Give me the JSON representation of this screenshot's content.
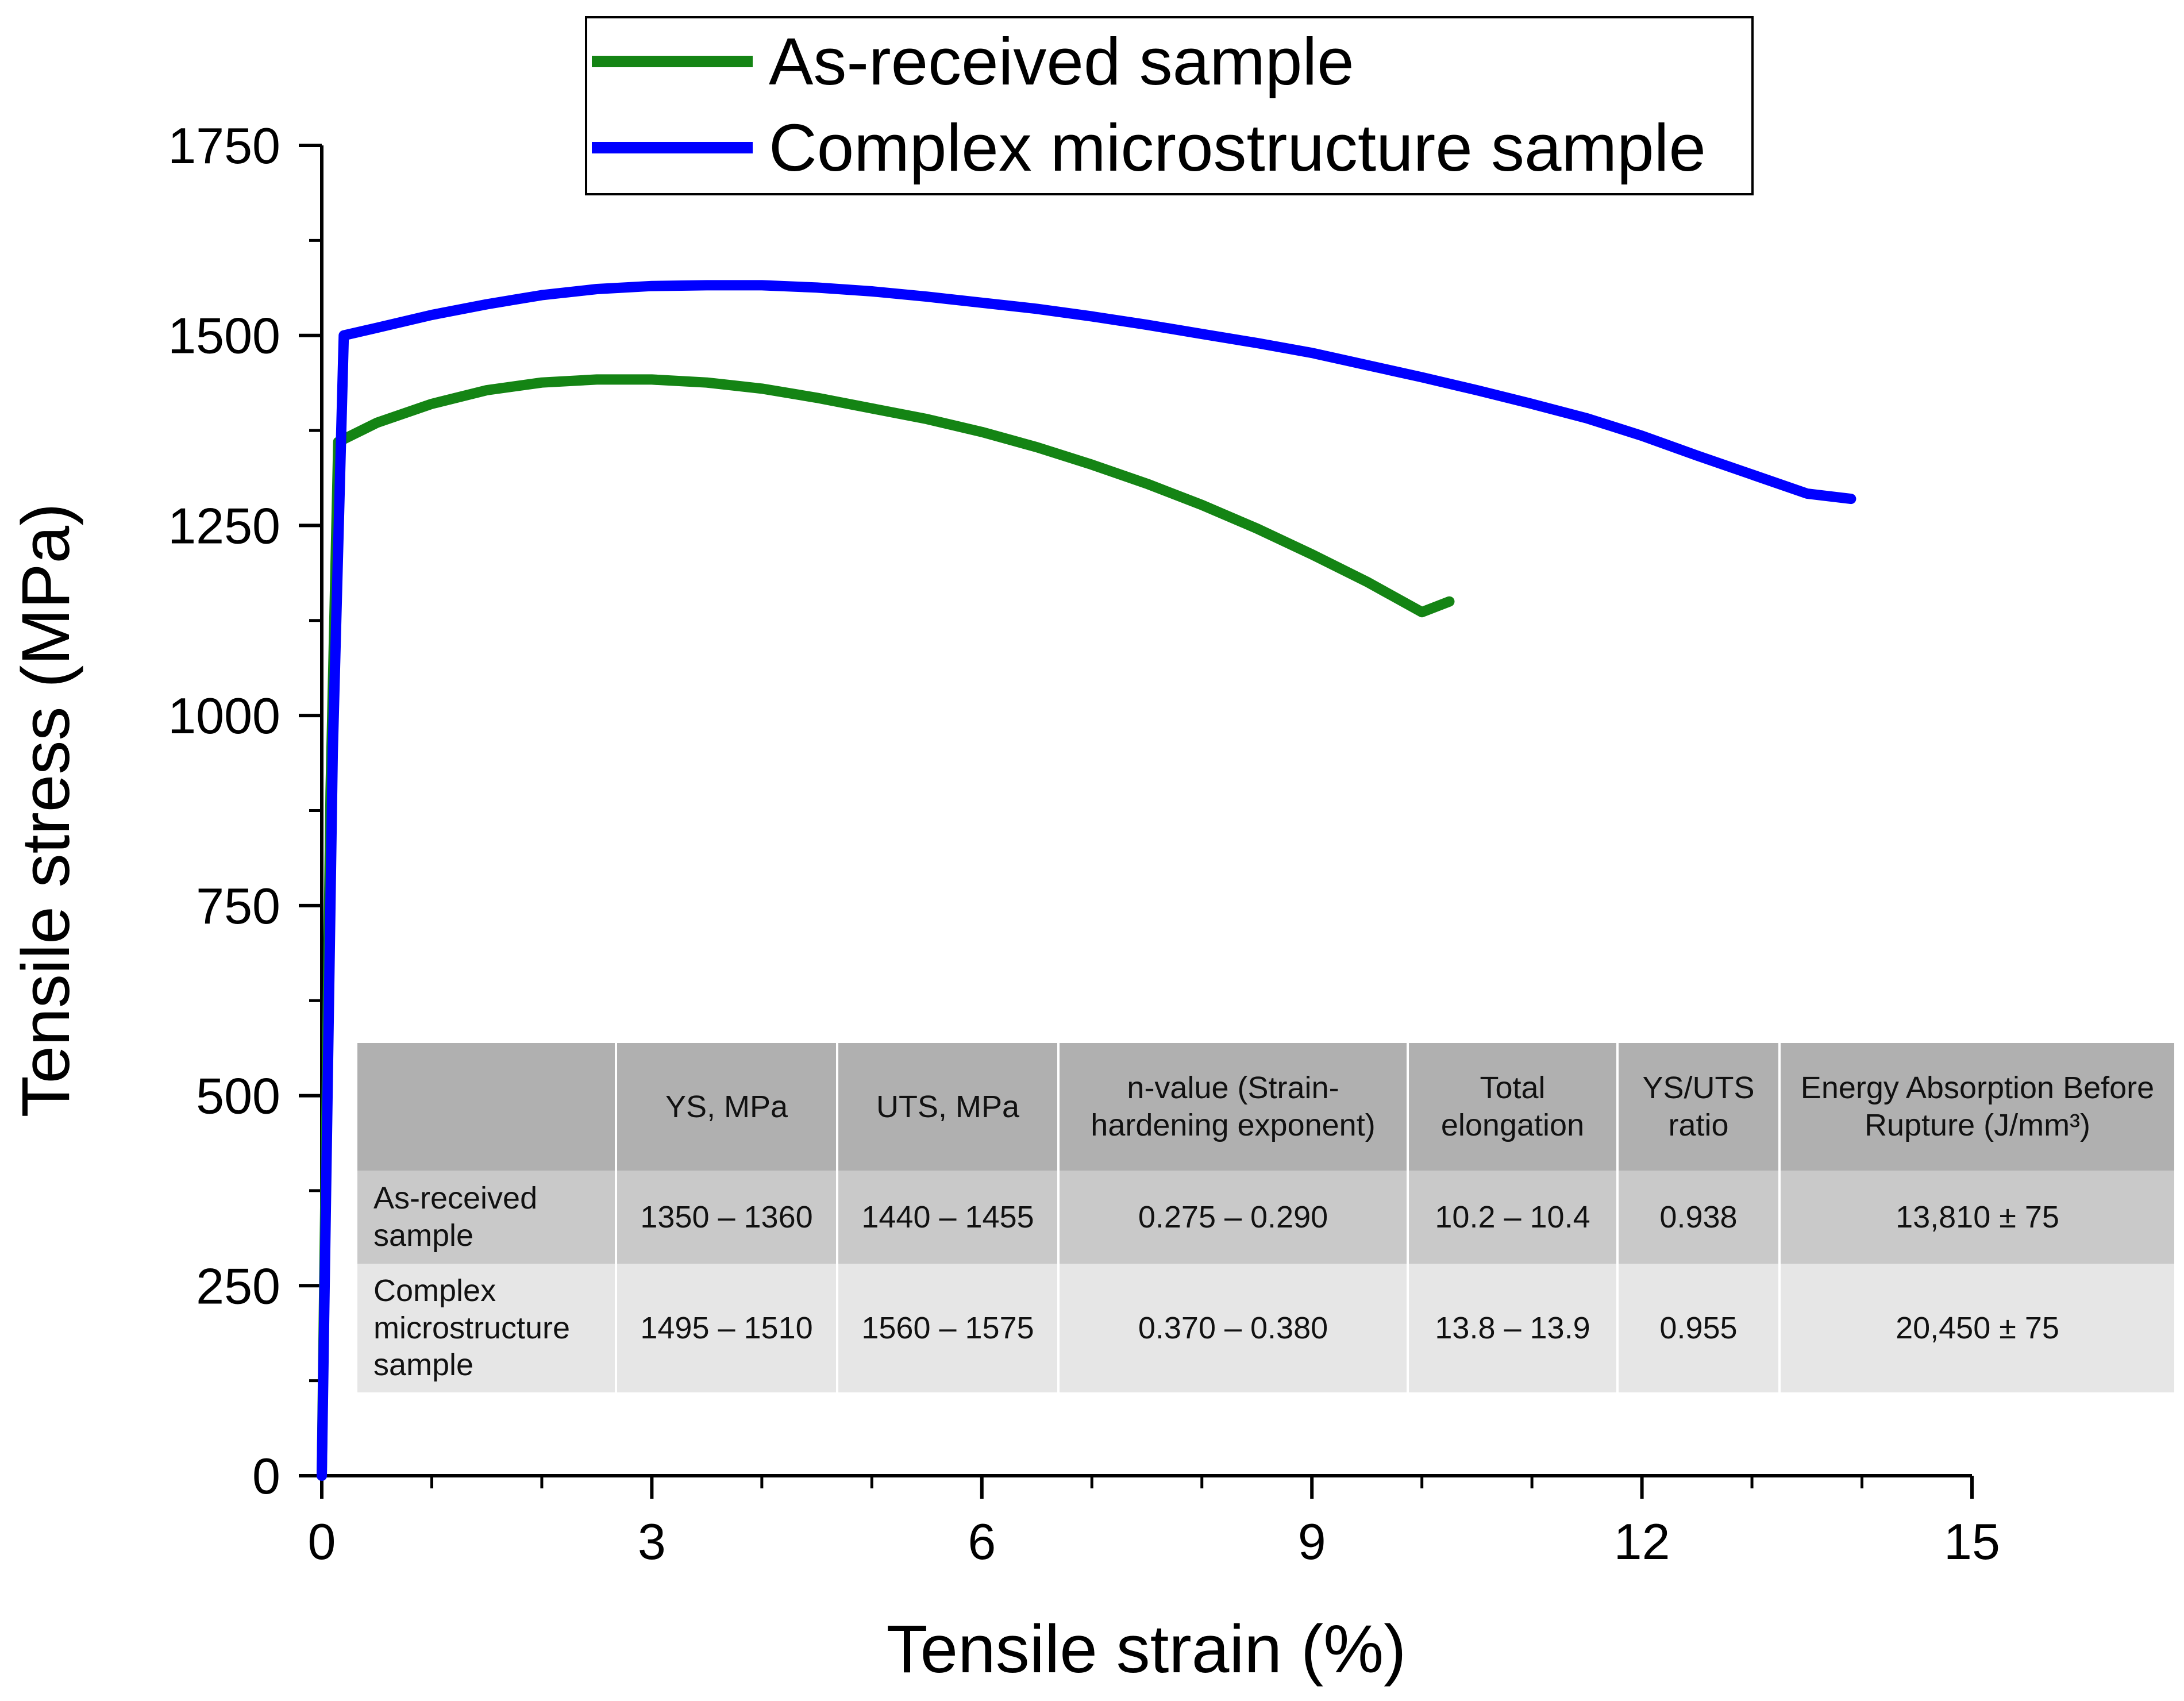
{
  "chart_data": {
    "type": "line",
    "xlabel": "Tensile strain (%)",
    "ylabel": "Tensile stress (MPa)",
    "xlim": [
      0,
      15
    ],
    "ylim": [
      0,
      1750
    ],
    "x_ticks": [
      0,
      3,
      6,
      9,
      12,
      15
    ],
    "y_ticks": [
      0,
      250,
      500,
      750,
      1000,
      1250,
      1500,
      1750
    ],
    "legend_position": "top",
    "series": [
      {
        "name": "As-received sample",
        "color": "#148414",
        "x": [
          0,
          0.08,
          0.15,
          0.5,
          1.0,
          1.5,
          2.0,
          2.5,
          3.0,
          3.5,
          4.0,
          4.5,
          5.0,
          5.5,
          6.0,
          6.5,
          7.0,
          7.5,
          8.0,
          8.5,
          9.0,
          9.5,
          10.0,
          10.25
        ],
        "y": [
          0,
          900,
          1360,
          1385,
          1410,
          1428,
          1438,
          1442,
          1442,
          1438,
          1430,
          1418,
          1404,
          1390,
          1373,
          1353,
          1330,
          1305,
          1277,
          1246,
          1212,
          1176,
          1136,
          1150
        ]
      },
      {
        "name": "Complex microstructure sample",
        "color": "#0000ff",
        "x": [
          0,
          0.1,
          0.2,
          0.5,
          1.0,
          1.5,
          2.0,
          2.5,
          3.0,
          3.5,
          4.0,
          4.5,
          5.0,
          5.5,
          6.0,
          6.5,
          7.0,
          7.5,
          8.0,
          8.5,
          9.0,
          9.5,
          10.0,
          10.5,
          11.0,
          11.5,
          12.0,
          12.5,
          13.0,
          13.5,
          13.9
        ],
        "y": [
          0,
          950,
          1500,
          1510,
          1527,
          1541,
          1553,
          1561,
          1565,
          1566,
          1566,
          1563,
          1558,
          1551,
          1543,
          1535,
          1525,
          1514,
          1502,
          1490,
          1477,
          1461,
          1445,
          1428,
          1410,
          1391,
          1368,
          1342,
          1317,
          1292,
          1285
        ]
      }
    ],
    "table": {
      "headers": [
        "",
        "YS, MPa",
        "UTS, MPa",
        "n-value (Strain-hardening exponent)",
        "Total elongation",
        "YS/UTS ratio",
        "Energy Absorption Before Rupture (J/mm³)"
      ],
      "rows": [
        {
          "name": "As-received sample",
          "cells": [
            "1350 – 1360",
            "1440 – 1455",
            "0.275 – 0.290",
            "10.2 – 10.4",
            "0.938",
            "13,810 ± 75"
          ]
        },
        {
          "name": "Complex microstructure sample",
          "cells": [
            "1495 – 1510",
            "1560 – 1575",
            "0.370 – 0.380",
            "13.8 – 13.9",
            "0.955",
            "20,450 ± 75"
          ]
        }
      ]
    }
  }
}
